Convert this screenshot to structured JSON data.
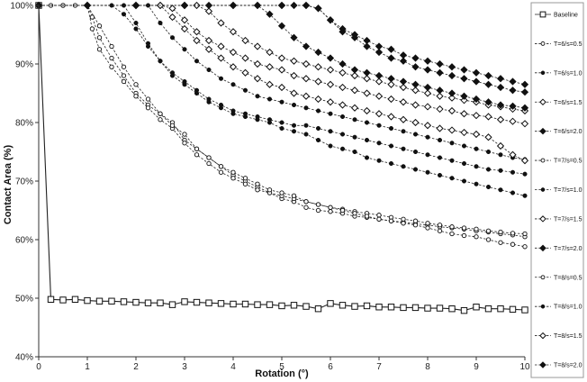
{
  "chart_data": {
    "type": "line",
    "xlabel": "Rotation (°)",
    "ylabel": "Contact Area (%)",
    "xlim": [
      0,
      10
    ],
    "ylim": [
      40,
      100
    ],
    "xticks": [
      0,
      1,
      2,
      3,
      4,
      5,
      6,
      7,
      8,
      9,
      10
    ],
    "yticks": [
      40,
      50,
      60,
      70,
      80,
      90,
      100
    ],
    "xtick_labels": [
      "0",
      "1",
      "2",
      "3",
      "4",
      "5",
      "6",
      "7",
      "8",
      "9",
      "10"
    ],
    "ytick_labels": [
      "40%",
      "50%",
      "60%",
      "70%",
      "80%",
      "90%",
      "100%"
    ],
    "grid": false,
    "legend_position": "right",
    "series": [
      {
        "name": "Baseline",
        "marker": "square-open",
        "line": "solid",
        "x": [
          0,
          0.25,
          0.5,
          0.75,
          1.0,
          1.25,
          1.5,
          1.75,
          2.0,
          2.25,
          2.5,
          2.75,
          3.0,
          3.25,
          3.5,
          3.75,
          4.0,
          4.25,
          4.5,
          4.75,
          5.0,
          5.25,
          5.5,
          5.75,
          6.0,
          6.25,
          6.5,
          6.75,
          7.0,
          7.25,
          7.5,
          7.75,
          8.0,
          8.25,
          8.5,
          8.75,
          9.0,
          9.25,
          9.5,
          9.75,
          10.0
        ],
        "y": [
          100,
          49.8,
          49.7,
          49.8,
          49.6,
          49.5,
          49.5,
          49.4,
          49.3,
          49.2,
          49.2,
          48.9,
          49.4,
          49.3,
          49.2,
          49.1,
          49.0,
          49.0,
          48.9,
          48.9,
          48.7,
          48.8,
          48.6,
          48.2,
          49.1,
          48.8,
          48.6,
          48.7,
          48.5,
          48.5,
          48.4,
          48.4,
          48.3,
          48.3,
          48.2,
          47.9,
          48.5,
          48.2,
          48.2,
          48.1,
          48.0
        ]
      },
      {
        "name": "T=6/s=0.5",
        "marker": "circle-open",
        "line": "dashed",
        "x": [
          0,
          0.25,
          0.5,
          0.75,
          1.0,
          1.1,
          1.25,
          1.5,
          1.75,
          2.0,
          2.25,
          2.5,
          2.75,
          3.0,
          3.25,
          3.5,
          3.75,
          4.0,
          4.25,
          4.5,
          4.75,
          5.0,
          5.25,
          5.5,
          5.75,
          6.0,
          6.25,
          6.5,
          6.75,
          7.0,
          7.25,
          7.5,
          7.75,
          8.0,
          8.25,
          8.5,
          8.75,
          9.0,
          9.25,
          9.5,
          9.75,
          10.0
        ],
        "y": [
          100,
          100,
          100,
          100,
          100,
          98,
          94.5,
          91,
          88,
          85,
          83,
          81.5,
          80,
          77,
          75.5,
          74,
          72.5,
          71,
          70,
          69,
          68,
          67,
          66.5,
          65.5,
          65,
          64.8,
          64.5,
          64,
          63.8,
          63.5,
          63.2,
          63,
          62.7,
          62.5,
          62.2,
          62,
          61.8,
          61.5,
          61.3,
          61,
          60.8,
          60.5
        ]
      },
      {
        "name": "T=6/s=1.0",
        "marker": "dot-filled",
        "line": "dashed",
        "x": [
          0,
          0.5,
          1.0,
          1.5,
          1.75,
          2.0,
          2.25,
          2.5,
          2.75,
          3.0,
          3.25,
          3.5,
          3.75,
          4.0,
          4.25,
          4.5,
          4.75,
          5.0,
          5.25,
          5.5,
          5.75,
          6.0,
          6.25,
          6.5,
          6.75,
          7.0,
          7.25,
          7.5,
          7.75,
          8.0,
          8.25,
          8.5,
          8.75,
          9.0,
          9.25,
          9.5,
          9.75,
          10.0
        ],
        "y": [
          100,
          100,
          100,
          100,
          98.5,
          96,
          93,
          90.5,
          88.5,
          87,
          85.5,
          84,
          83,
          82,
          81.5,
          81,
          80.5,
          80,
          79.5,
          79.5,
          79,
          78.5,
          78,
          77.5,
          77,
          76.5,
          76,
          75.5,
          75,
          74.5,
          74,
          73.5,
          73,
          72.5,
          72,
          71.8,
          71.5,
          71.2
        ]
      },
      {
        "name": "T=6/s=1.5",
        "marker": "diamond-open",
        "line": "dashed",
        "x": [
          0,
          1.0,
          2.0,
          2.5,
          2.75,
          3.0,
          3.25,
          3.5,
          3.75,
          4.0,
          4.25,
          4.5,
          4.75,
          5.0,
          5.25,
          5.5,
          5.75,
          6.0,
          6.25,
          6.5,
          6.75,
          7.0,
          7.25,
          7.5,
          7.75,
          8.0,
          8.25,
          8.5,
          8.75,
          9.0,
          9.25,
          9.5,
          9.75,
          10.0
        ],
        "y": [
          100,
          100,
          100,
          100,
          99.5,
          97.5,
          95.5,
          94,
          93,
          92,
          91,
          90,
          89.5,
          89,
          88,
          87.5,
          87,
          86.5,
          86,
          85.5,
          85,
          84.5,
          84,
          83.5,
          83,
          82.7,
          82.3,
          82,
          81.5,
          81.2,
          81,
          80.5,
          80.2,
          79.8
        ]
      },
      {
        "name": "T=6/s=2.0",
        "marker": "diamond-filled",
        "line": "dashed",
        "x": [
          0,
          1.0,
          2.0,
          3.0,
          3.5,
          4.0,
          4.5,
          5.0,
          5.25,
          5.5,
          5.75,
          6.0,
          6.25,
          6.5,
          6.75,
          7.0,
          7.25,
          7.5,
          7.75,
          8.0,
          8.25,
          8.5,
          8.75,
          9.0,
          9.25,
          9.5,
          9.75,
          10.0
        ],
        "y": [
          100,
          100,
          100,
          100,
          100,
          100,
          100,
          100,
          100,
          100,
          99.5,
          97.5,
          95.5,
          94.5,
          93,
          92,
          91,
          90.5,
          89.5,
          89,
          88.5,
          88,
          87.5,
          87,
          86.5,
          86,
          85.5,
          85.2
        ]
      },
      {
        "name": "T=7/s=0.5",
        "marker": "circle-open",
        "line": "dashed",
        "x": [
          0,
          0.5,
          1.0,
          1.1,
          1.25,
          1.5,
          1.75,
          2.0,
          2.25,
          2.5,
          2.75,
          3.0,
          3.25,
          3.5,
          3.75,
          4.0,
          4.25,
          4.5,
          4.75,
          5.0,
          5.25,
          5.5,
          5.75,
          6.0,
          6.25,
          6.5,
          6.75,
          7.0,
          7.25,
          7.5,
          7.75,
          8.0,
          8.25,
          8.5,
          8.75,
          9.0,
          9.25,
          9.5,
          9.75,
          10.0
        ],
        "y": [
          100,
          100,
          100,
          96,
          92.5,
          89.5,
          87,
          84.5,
          82.5,
          80.5,
          79,
          76.5,
          74.5,
          73,
          71.5,
          70.5,
          69.5,
          68.5,
          68,
          67.5,
          67,
          66.5,
          66,
          65.5,
          65.2,
          64.8,
          64.5,
          64.2,
          63.8,
          63.5,
          63.2,
          62.8,
          62.5,
          62.2,
          62,
          61.8,
          61.5,
          61.3,
          61.1,
          61
        ]
      },
      {
        "name": "T=7/s=1.0",
        "marker": "dot-filled",
        "line": "dashed",
        "x": [
          0,
          1.0,
          2.0,
          2.25,
          2.5,
          2.75,
          3.0,
          3.25,
          3.5,
          3.75,
          4.0,
          4.25,
          4.5,
          4.75,
          5.0,
          5.25,
          5.5,
          5.75,
          6.0,
          6.25,
          6.5,
          6.75,
          7.0,
          7.25,
          7.5,
          7.75,
          8.0,
          8.25,
          8.5,
          8.75,
          9.0,
          9.25,
          9.5,
          9.75,
          10.0
        ],
        "y": [
          100,
          100,
          100,
          100,
          97,
          94.5,
          92.5,
          90.5,
          89,
          87.5,
          86.5,
          85.5,
          84.5,
          84,
          83.5,
          83,
          82.5,
          82,
          81.5,
          81,
          80.5,
          80,
          79.5,
          79,
          78.5,
          78,
          77.5,
          77,
          76.5,
          76,
          75.5,
          75,
          74.5,
          74,
          73.7
        ]
      },
      {
        "name": "T=7/s=1.5",
        "marker": "diamond-open",
        "line": "dashed",
        "x": [
          0,
          1.0,
          2.0,
          3.0,
          3.25,
          3.5,
          3.75,
          4.0,
          4.25,
          4.5,
          4.75,
          5.0,
          5.25,
          5.5,
          5.75,
          6.0,
          6.25,
          6.5,
          6.75,
          7.0,
          7.25,
          7.5,
          7.75,
          8.0,
          8.25,
          8.5,
          8.75,
          9.0,
          9.25,
          9.5,
          9.75,
          10.0
        ],
        "y": [
          100,
          100,
          100,
          100,
          100,
          99,
          97,
          95.5,
          94,
          93,
          92,
          91,
          90.5,
          90,
          89.5,
          89,
          88.5,
          88,
          87.5,
          87,
          86.5,
          86,
          85.5,
          85,
          84.5,
          84.2,
          83.8,
          83.5,
          83,
          82.7,
          82.3,
          82
        ]
      },
      {
        "name": "T=7/s=2.0",
        "marker": "diamond-filled",
        "line": "dashed",
        "x": [
          0,
          1.0,
          2.0,
          3.0,
          4.0,
          5.0,
          5.5,
          5.75,
          6.0,
          6.25,
          6.5,
          6.75,
          7.0,
          7.25,
          7.5,
          7.75,
          8.0,
          8.25,
          8.5,
          8.75,
          9.0,
          9.25,
          9.5,
          9.75,
          10.0
        ],
        "y": [
          100,
          100,
          100,
          100,
          100,
          100,
          100,
          99.5,
          97.5,
          96,
          95,
          94,
          93,
          92.5,
          91.5,
          91,
          90.5,
          90,
          89.5,
          89,
          88.5,
          88,
          87.5,
          87,
          86.5
        ]
      },
      {
        "name": "T=8/s=0.5",
        "marker": "circle-open",
        "line": "dashed",
        "x": [
          0,
          0.5,
          1.0,
          1.25,
          1.5,
          1.75,
          2.0,
          2.25,
          2.5,
          2.75,
          3.0,
          3.25,
          3.5,
          3.75,
          4.0,
          4.25,
          4.5,
          4.75,
          5.0,
          5.25,
          5.5,
          5.75,
          6.0,
          6.25,
          6.5,
          6.75,
          7.0,
          7.25,
          7.5,
          7.75,
          8.0,
          8.25,
          8.5,
          8.75,
          9.0,
          9.25,
          9.5,
          9.75,
          10.0
        ],
        "y": [
          100,
          100,
          100,
          96.5,
          93,
          89.5,
          86.5,
          84,
          81.5,
          79.5,
          78,
          75.5,
          74,
          72.5,
          71.5,
          70.5,
          69.5,
          68.5,
          68,
          67.5,
          66.5,
          66,
          65.5,
          65,
          64.5,
          64,
          63.5,
          63.2,
          62.8,
          62.5,
          62,
          61.5,
          61,
          60.7,
          60.5,
          60,
          59.5,
          59.2,
          58.8
        ]
      },
      {
        "name": "T=8/s=1.0",
        "marker": "dot-filled",
        "line": "dashed",
        "x": [
          0,
          1.0,
          1.75,
          2.0,
          2.25,
          2.5,
          2.75,
          3.0,
          3.25,
          3.5,
          3.75,
          4.0,
          4.25,
          4.5,
          4.75,
          5.0,
          5.25,
          5.5,
          5.75,
          6.0,
          6.25,
          6.5,
          6.75,
          7.0,
          7.25,
          7.5,
          7.75,
          8.0,
          8.25,
          8.5,
          8.75,
          9.0,
          9.25,
          9.5,
          9.75,
          10.0
        ],
        "y": [
          100,
          100,
          100,
          97,
          93.5,
          90.5,
          88,
          86.5,
          85,
          83.5,
          82.5,
          81.5,
          81,
          80.5,
          80,
          79,
          78.5,
          78,
          77,
          76,
          75.5,
          75,
          74,
          73.5,
          73,
          72.5,
          72,
          71.5,
          71,
          70.5,
          70,
          69.5,
          69,
          68.5,
          68,
          67.5
        ]
      },
      {
        "name": "T=8/s=1.5",
        "marker": "diamond-open",
        "line": "dashed",
        "x": [
          0,
          1.0,
          2.0,
          2.5,
          2.75,
          3.0,
          3.25,
          3.5,
          3.75,
          4.0,
          4.25,
          4.5,
          4.75,
          5.0,
          5.25,
          5.5,
          5.75,
          6.0,
          6.25,
          6.5,
          6.75,
          7.0,
          7.25,
          7.5,
          7.75,
          8.0,
          8.25,
          8.5,
          8.75,
          9.0,
          9.25,
          9.5,
          9.75,
          10.0
        ],
        "y": [
          100,
          100,
          100,
          100,
          98,
          96,
          94,
          92.5,
          91,
          89.5,
          88.5,
          87.5,
          86.5,
          86,
          85,
          84.5,
          84,
          83.5,
          83,
          82.5,
          82,
          81.5,
          81,
          80.5,
          80,
          79.5,
          79,
          78.7,
          78.3,
          78,
          77.5,
          76,
          74.5,
          73.5
        ]
      },
      {
        "name": "T=8/s=2.0",
        "marker": "diamond-filled",
        "line": "dashed",
        "x": [
          0,
          1.0,
          2.0,
          3.0,
          4.0,
          4.5,
          4.75,
          5.0,
          5.25,
          5.5,
          5.75,
          6.0,
          6.25,
          6.5,
          6.75,
          7.0,
          7.25,
          7.5,
          7.75,
          8.0,
          8.25,
          8.5,
          8.75,
          9.0,
          9.25,
          9.5,
          9.75,
          10.0
        ],
        "y": [
          100,
          100,
          100,
          100,
          100,
          100,
          98.5,
          96.5,
          94.5,
          93,
          92,
          91,
          90,
          89,
          88.5,
          88,
          87.5,
          87,
          86.5,
          86,
          85.5,
          85,
          84.5,
          84,
          83.5,
          83,
          82.8,
          82.5
        ]
      }
    ]
  }
}
